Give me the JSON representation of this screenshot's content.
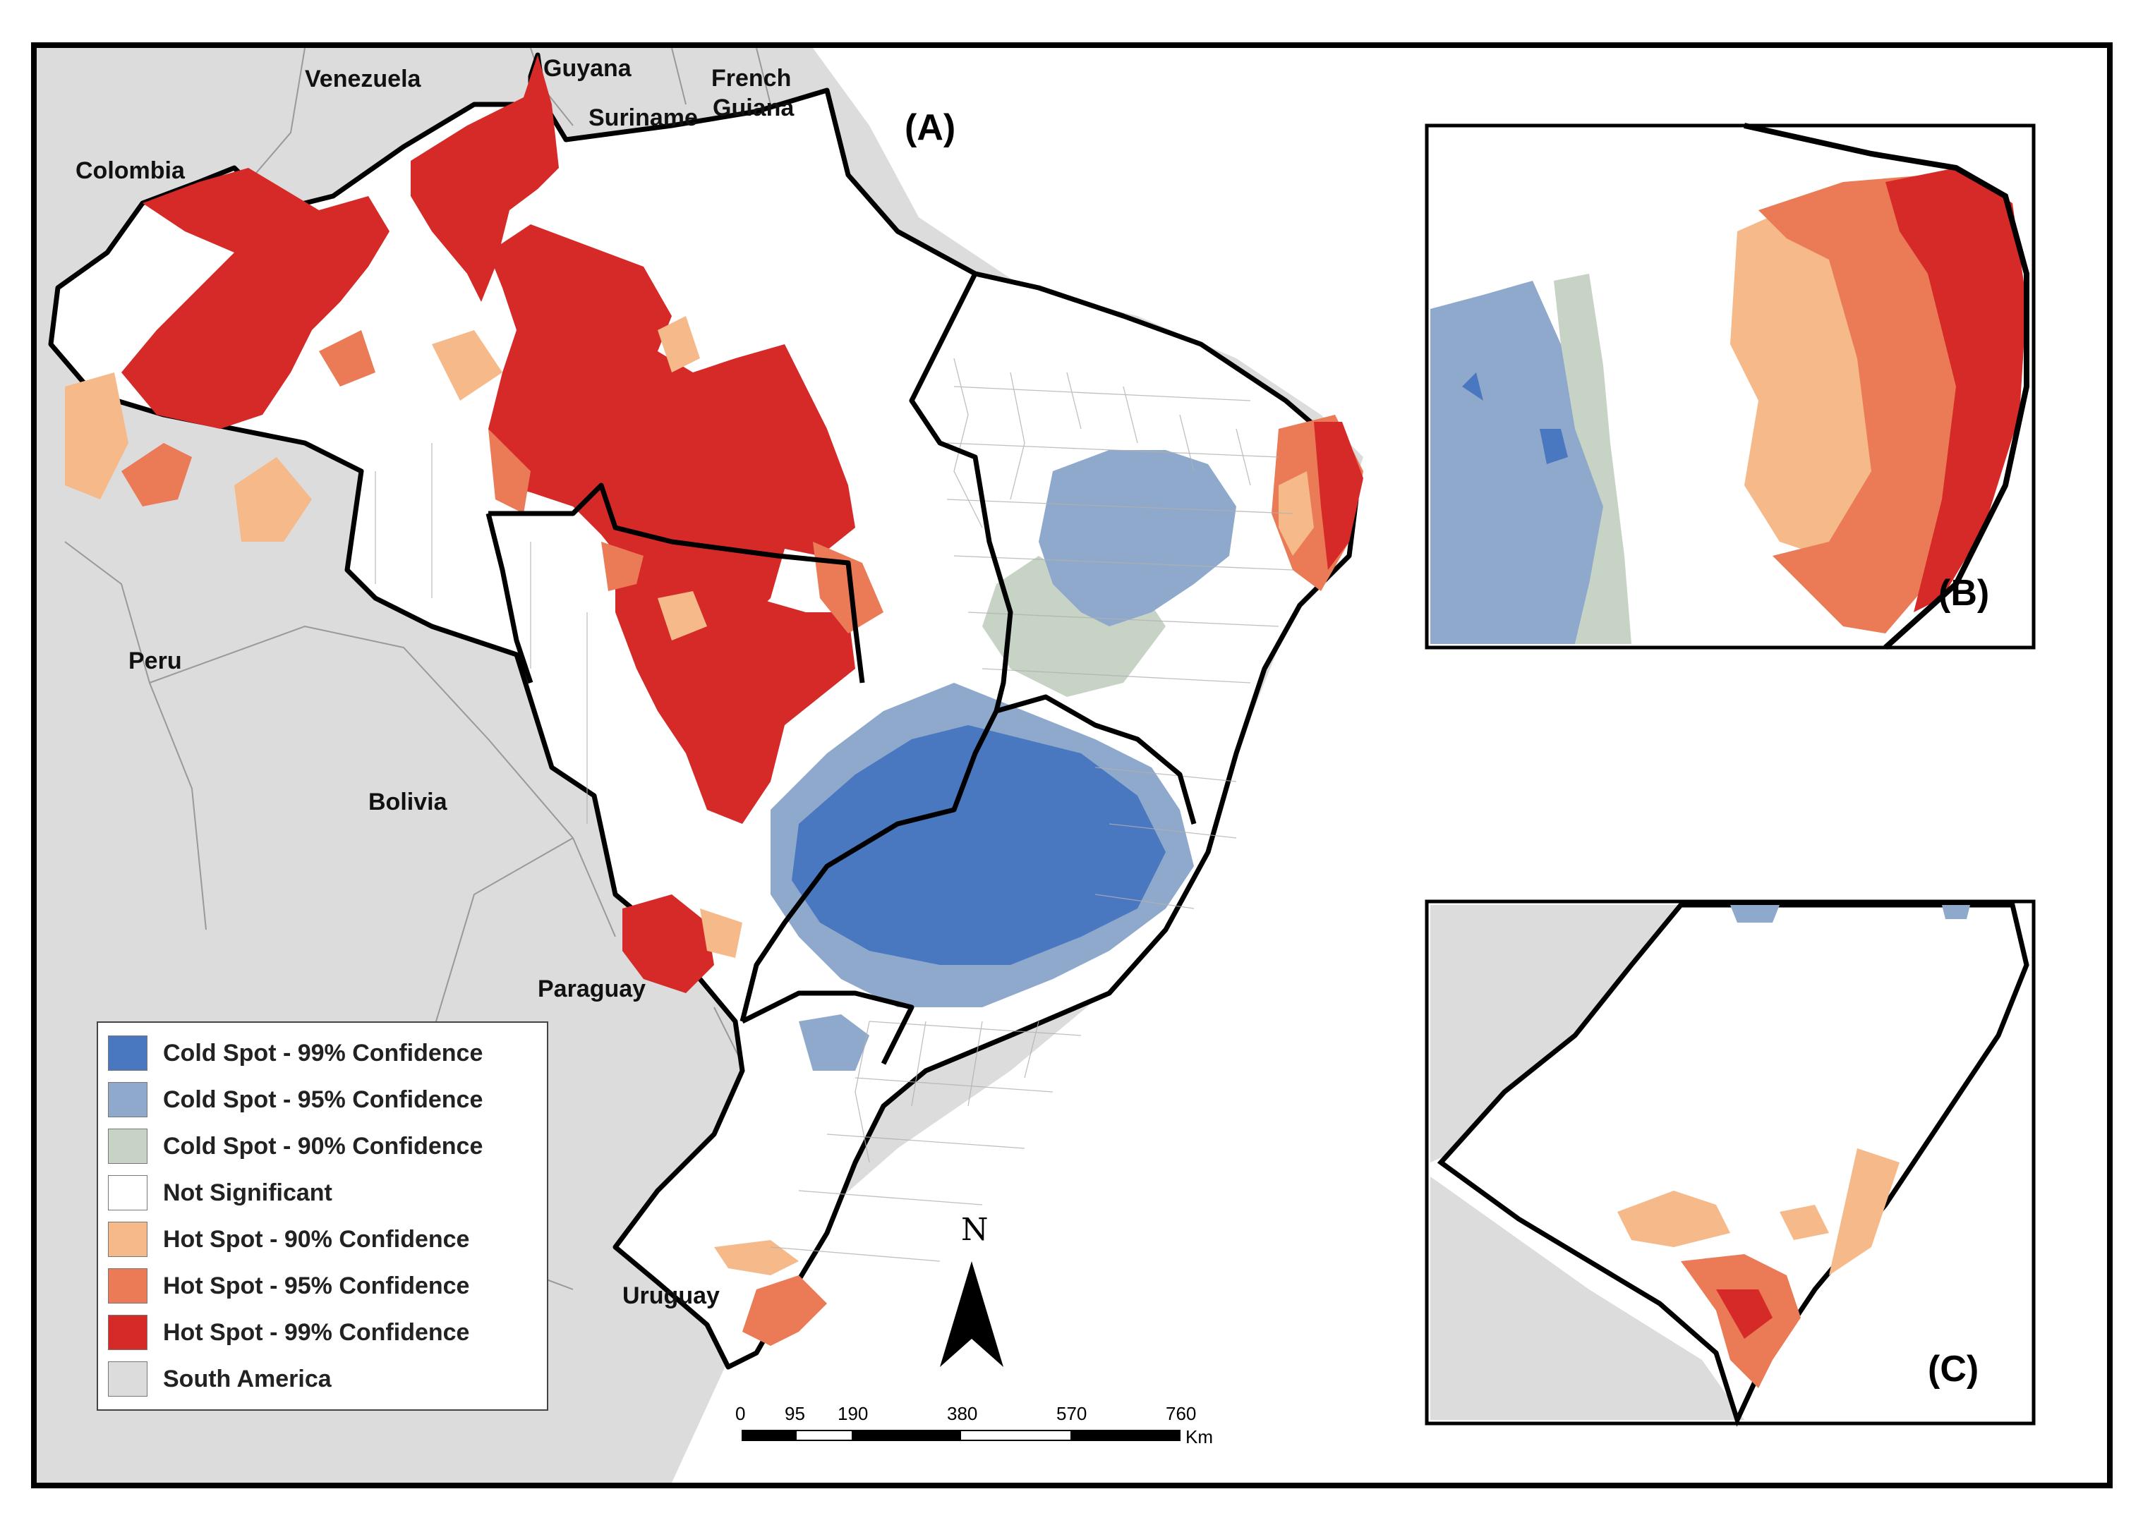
{
  "panels": {
    "main": "(A)",
    "northeast": "(B)",
    "south": "(C)"
  },
  "countries": {
    "venezuela": "Venezuela",
    "guyana": "Guyana",
    "suriname": "Suriname",
    "french_guiana_line1": "French",
    "french_guiana_line2": "Guiana",
    "colombia": "Colombia",
    "peru": "Peru",
    "bolivia": "Bolivia",
    "paraguay": "Paraguay",
    "uruguay": "Uruguay"
  },
  "legend": {
    "items": [
      {
        "label": "Cold Spot - 99% Confidence",
        "color": "#4a78c0"
      },
      {
        "label": "Cold Spot - 95% Confidence",
        "color": "#8fa9cc"
      },
      {
        "label": "Cold Spot - 90% Confidence",
        "color": "#c6d3c5"
      },
      {
        "label": "Not Significant",
        "color": "#ffffff"
      },
      {
        "label": "Hot Spot - 90% Confidence",
        "color": "#f5b98a"
      },
      {
        "label": "Hot Spot - 95% Confidence",
        "color": "#eb7a56"
      },
      {
        "label": "Hot Spot - 99% Confidence",
        "color": "#d62a28"
      },
      {
        "label": "South America",
        "color": "#dcdcdc"
      }
    ]
  },
  "scale_bar": {
    "ticks": [
      "0",
      "95",
      "190",
      "380",
      "570",
      "760"
    ],
    "unit": "Km"
  },
  "north_arrow": {
    "label": "N"
  },
  "colors": {
    "cold99": "#4a78c0",
    "cold95": "#8fa9cc",
    "cold90": "#c6d3c5",
    "hot90": "#f5b98a",
    "hot95": "#eb7a56",
    "hot99": "#d62a28",
    "south_america": "#dcdcdc",
    "ocean": "#ffffff"
  }
}
